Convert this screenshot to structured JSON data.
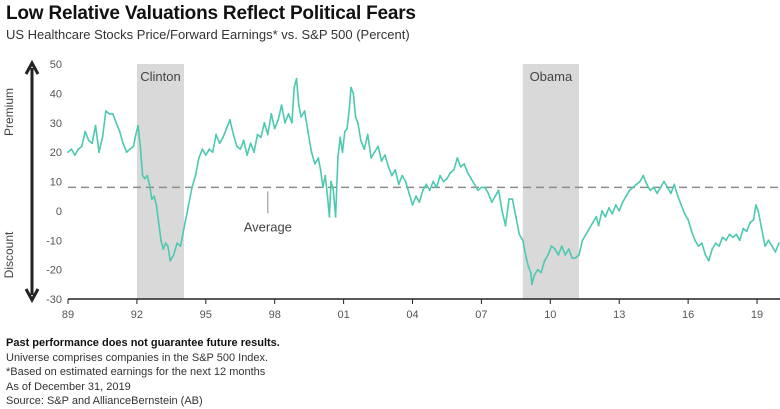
{
  "header": {
    "title": "Low Relative Valuations Reflect Political Fears",
    "subtitle": "US Healthcare Stocks Price/Forward Earnings* vs. S&P 500  (Percent)"
  },
  "footnotes": {
    "disclaimer": "Past performance does not guarantee future results.",
    "universe": "Universe comprises companies in the S&P 500 Index.",
    "basis": "*Based on estimated earnings for the next 12 months",
    "asof": "As of December 31, 2019",
    "source": "Source: S&P and AllianceBernstein (AB)"
  },
  "colors": {
    "line": "#4ec9b0",
    "shade": "#d9d9d9",
    "average": "#8c8c8c",
    "axis": "#222222"
  },
  "chart_data": {
    "type": "line",
    "xlim": [
      1989.0,
      2020.0
    ],
    "ylim": [
      -30,
      50
    ],
    "x_ticks": [
      {
        "value": 1989,
        "label": "89"
      },
      {
        "value": 1992,
        "label": "92"
      },
      {
        "value": 1995,
        "label": "95"
      },
      {
        "value": 1998,
        "label": "98"
      },
      {
        "value": 2001,
        "label": "01"
      },
      {
        "value": 2004,
        "label": "04"
      },
      {
        "value": 2007,
        "label": "07"
      },
      {
        "value": 2010,
        "label": "10"
      },
      {
        "value": 2013,
        "label": "13"
      },
      {
        "value": 2016,
        "label": "16"
      },
      {
        "value": 2019,
        "label": "19"
      }
    ],
    "y_ticks": [
      50,
      40,
      30,
      20,
      10,
      0,
      -10,
      -20,
      -30
    ],
    "average": {
      "value": 8,
      "label": "Average"
    },
    "shaded_periods": [
      {
        "label": "Clinton",
        "start": 1992.0,
        "end": 1994.05
      },
      {
        "label": "Obama",
        "start": 2008.8,
        "end": 2011.25
      }
    ],
    "side_labels": {
      "top": "Premium",
      "bottom": "Discount"
    },
    "series": [
      {
        "points": [
          [
            1989.0,
            20
          ],
          [
            1989.15,
            21
          ],
          [
            1989.3,
            19
          ],
          [
            1989.45,
            21
          ],
          [
            1989.6,
            22
          ],
          [
            1989.75,
            27
          ],
          [
            1989.9,
            24
          ],
          [
            1990.05,
            23
          ],
          [
            1990.2,
            29
          ],
          [
            1990.35,
            20
          ],
          [
            1990.5,
            25
          ],
          [
            1990.65,
            34
          ],
          [
            1990.8,
            33
          ],
          [
            1990.95,
            33
          ],
          [
            1991.1,
            30
          ],
          [
            1991.25,
            27
          ],
          [
            1991.4,
            23
          ],
          [
            1991.55,
            20
          ],
          [
            1991.7,
            21
          ],
          [
            1991.85,
            22
          ],
          [
            1991.95,
            26
          ],
          [
            1992.05,
            29
          ],
          [
            1992.15,
            22
          ],
          [
            1992.25,
            12
          ],
          [
            1992.35,
            11
          ],
          [
            1992.45,
            12
          ],
          [
            1992.55,
            9
          ],
          [
            1992.65,
            4
          ],
          [
            1992.75,
            5
          ],
          [
            1992.85,
            2
          ],
          [
            1992.95,
            -4
          ],
          [
            1993.05,
            -10
          ],
          [
            1993.15,
            -13
          ],
          [
            1993.25,
            -11
          ],
          [
            1993.35,
            -12
          ],
          [
            1993.45,
            -17
          ],
          [
            1993.6,
            -15
          ],
          [
            1993.75,
            -11
          ],
          [
            1993.9,
            -12
          ],
          [
            1994.0,
            -8
          ],
          [
            1994.1,
            -4
          ],
          [
            1994.25,
            2
          ],
          [
            1994.4,
            8
          ],
          [
            1994.55,
            12
          ],
          [
            1994.7,
            18
          ],
          [
            1994.85,
            21
          ],
          [
            1995.0,
            19
          ],
          [
            1995.15,
            21
          ],
          [
            1995.3,
            20
          ],
          [
            1995.45,
            26
          ],
          [
            1995.6,
            23
          ],
          [
            1995.75,
            25
          ],
          [
            1995.9,
            28
          ],
          [
            1996.05,
            31
          ],
          [
            1996.2,
            26
          ],
          [
            1996.35,
            22
          ],
          [
            1996.5,
            21
          ],
          [
            1996.65,
            24
          ],
          [
            1996.8,
            19
          ],
          [
            1996.95,
            23
          ],
          [
            1997.1,
            20
          ],
          [
            1997.25,
            26
          ],
          [
            1997.4,
            25
          ],
          [
            1997.55,
            30
          ],
          [
            1997.7,
            26
          ],
          [
            1997.85,
            33
          ],
          [
            1998.0,
            28
          ],
          [
            1998.15,
            31
          ],
          [
            1998.3,
            36
          ],
          [
            1998.45,
            30
          ],
          [
            1998.6,
            33
          ],
          [
            1998.75,
            30
          ],
          [
            1998.85,
            42
          ],
          [
            1998.95,
            45
          ],
          [
            1999.05,
            36
          ],
          [
            1999.15,
            32
          ],
          [
            1999.3,
            34
          ],
          [
            1999.45,
            27
          ],
          [
            1999.6,
            20
          ],
          [
            1999.75,
            16
          ],
          [
            1999.9,
            18
          ],
          [
            2000.0,
            14
          ],
          [
            2000.1,
            8
          ],
          [
            2000.2,
            12
          ],
          [
            2000.3,
            5
          ],
          [
            2000.38,
            -2
          ],
          [
            2000.45,
            10
          ],
          [
            2000.55,
            7
          ],
          [
            2000.65,
            -2
          ],
          [
            2000.75,
            18
          ],
          [
            2000.85,
            25
          ],
          [
            2000.95,
            20
          ],
          [
            2001.05,
            27
          ],
          [
            2001.15,
            28
          ],
          [
            2001.25,
            35
          ],
          [
            2001.32,
            42
          ],
          [
            2001.42,
            40
          ],
          [
            2001.52,
            32
          ],
          [
            2001.62,
            30
          ],
          [
            2001.75,
            24
          ],
          [
            2001.9,
            21
          ],
          [
            2002.05,
            26
          ],
          [
            2002.2,
            18
          ],
          [
            2002.35,
            20
          ],
          [
            2002.5,
            22
          ],
          [
            2002.65,
            17
          ],
          [
            2002.8,
            19
          ],
          [
            2002.95,
            15
          ],
          [
            2003.1,
            12
          ],
          [
            2003.25,
            14
          ],
          [
            2003.4,
            9
          ],
          [
            2003.55,
            12
          ],
          [
            2003.7,
            10
          ],
          [
            2003.85,
            6
          ],
          [
            2004.0,
            2
          ],
          [
            2004.15,
            5
          ],
          [
            2004.3,
            3
          ],
          [
            2004.45,
            7
          ],
          [
            2004.6,
            9
          ],
          [
            2004.75,
            7
          ],
          [
            2004.9,
            10
          ],
          [
            2005.05,
            8
          ],
          [
            2005.2,
            12
          ],
          [
            2005.35,
            10
          ],
          [
            2005.5,
            11
          ],
          [
            2005.65,
            13
          ],
          [
            2005.8,
            14
          ],
          [
            2005.95,
            18
          ],
          [
            2006.1,
            15
          ],
          [
            2006.25,
            16
          ],
          [
            2006.4,
            13
          ],
          [
            2006.55,
            11
          ],
          [
            2006.7,
            9
          ],
          [
            2006.85,
            7
          ],
          [
            2007.0,
            8
          ],
          [
            2007.15,
            8
          ],
          [
            2007.3,
            6
          ],
          [
            2007.45,
            3
          ],
          [
            2007.6,
            5
          ],
          [
            2007.75,
            7
          ],
          [
            2007.9,
            0
          ],
          [
            2008.05,
            -5
          ],
          [
            2008.2,
            4
          ],
          [
            2008.35,
            4
          ],
          [
            2008.5,
            -2
          ],
          [
            2008.65,
            -8
          ],
          [
            2008.8,
            -10
          ],
          [
            2008.95,
            -16
          ],
          [
            2009.05,
            -19
          ],
          [
            2009.15,
            -21
          ],
          [
            2009.2,
            -25
          ],
          [
            2009.3,
            -22
          ],
          [
            2009.45,
            -20
          ],
          [
            2009.6,
            -21
          ],
          [
            2009.75,
            -17
          ],
          [
            2009.9,
            -15
          ],
          [
            2010.05,
            -12
          ],
          [
            2010.2,
            -13
          ],
          [
            2010.35,
            -15
          ],
          [
            2010.5,
            -12
          ],
          [
            2010.65,
            -15
          ],
          [
            2010.8,
            -13
          ],
          [
            2010.95,
            -16
          ],
          [
            2011.1,
            -16
          ],
          [
            2011.25,
            -15
          ],
          [
            2011.4,
            -10
          ],
          [
            2011.55,
            -8
          ],
          [
            2011.7,
            -6
          ],
          [
            2011.85,
            -4
          ],
          [
            2012.0,
            -2
          ],
          [
            2012.1,
            -5
          ],
          [
            2012.25,
            0
          ],
          [
            2012.4,
            -2
          ],
          [
            2012.55,
            1
          ],
          [
            2012.7,
            -1
          ],
          [
            2012.85,
            2
          ],
          [
            2013.0,
            0
          ],
          [
            2013.15,
            3
          ],
          [
            2013.3,
            5
          ],
          [
            2013.45,
            7
          ],
          [
            2013.6,
            8
          ],
          [
            2013.75,
            9
          ],
          [
            2013.9,
            10
          ],
          [
            2014.05,
            12
          ],
          [
            2014.2,
            9
          ],
          [
            2014.35,
            7
          ],
          [
            2014.5,
            8
          ],
          [
            2014.65,
            6
          ],
          [
            2014.8,
            8
          ],
          [
            2014.95,
            10
          ],
          [
            2015.1,
            8
          ],
          [
            2015.25,
            6
          ],
          [
            2015.4,
            9
          ],
          [
            2015.55,
            5
          ],
          [
            2015.7,
            2
          ],
          [
            2015.85,
            -1
          ],
          [
            2016.0,
            -3
          ],
          [
            2016.15,
            -7
          ],
          [
            2016.3,
            -10
          ],
          [
            2016.45,
            -12
          ],
          [
            2016.6,
            -11
          ],
          [
            2016.75,
            -15
          ],
          [
            2016.9,
            -17
          ],
          [
            2017.05,
            -13
          ],
          [
            2017.2,
            -11
          ],
          [
            2017.35,
            -12
          ],
          [
            2017.5,
            -9
          ],
          [
            2017.65,
            -10
          ],
          [
            2017.8,
            -8
          ],
          [
            2017.95,
            -9
          ],
          [
            2018.1,
            -8
          ],
          [
            2018.25,
            -10
          ],
          [
            2018.4,
            -6
          ],
          [
            2018.55,
            -7
          ],
          [
            2018.7,
            -4
          ],
          [
            2018.85,
            -3
          ],
          [
            2018.95,
            2
          ],
          [
            2019.05,
            0
          ],
          [
            2019.2,
            -6
          ],
          [
            2019.35,
            -12
          ],
          [
            2019.5,
            -10
          ],
          [
            2019.65,
            -12
          ],
          [
            2019.8,
            -14
          ],
          [
            2019.95,
            -11
          ]
        ]
      }
    ]
  }
}
